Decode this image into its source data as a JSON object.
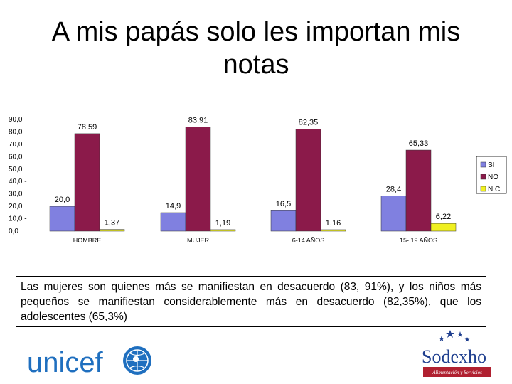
{
  "title": "A mis papás solo les importan mis notas",
  "note": "Las mujeres son quienes más se manifiestan en desacuerdo (83, 91%), y los niños más pequeños se manifiestan considerablemente más en desacuerdo (82,35%), que los adolescentes (65,3%)",
  "logos": {
    "left": "unicef",
    "right": "Sodexho",
    "right_tagline": "Alimentación y Servicios"
  },
  "colors": {
    "SI": "#8080e0",
    "NO": "#8b1a4a",
    "NC": "#f0f020"
  },
  "chart_data": {
    "type": "bar",
    "categories": [
      "HOMBRE",
      "MUJER",
      "6-14 AÑOS",
      "15- 19 AÑOS"
    ],
    "series": [
      {
        "name": "SI",
        "values": [
          20.0,
          14.9,
          16.5,
          28.4
        ],
        "labels": [
          "20,0",
          "14,9",
          "16,5",
          "28,4"
        ]
      },
      {
        "name": "NO",
        "values": [
          78.59,
          83.91,
          82.35,
          65.33
        ],
        "labels": [
          "78,59",
          "83,91",
          "82,35",
          "65,33"
        ]
      },
      {
        "name": "N.C",
        "values": [
          1.37,
          1.19,
          1.16,
          6.22
        ],
        "labels": [
          "1,37",
          "1,19",
          "1,16",
          "6,22"
        ]
      }
    ],
    "yticks": [
      "0,0",
      "10,0 -",
      "20,0",
      "30,0",
      "40,0 -",
      "50,0",
      "60,0",
      "70,0",
      "80,0 -",
      "90,0"
    ],
    "ylim": [
      0,
      90
    ],
    "legend_position": "right",
    "grid": false
  }
}
